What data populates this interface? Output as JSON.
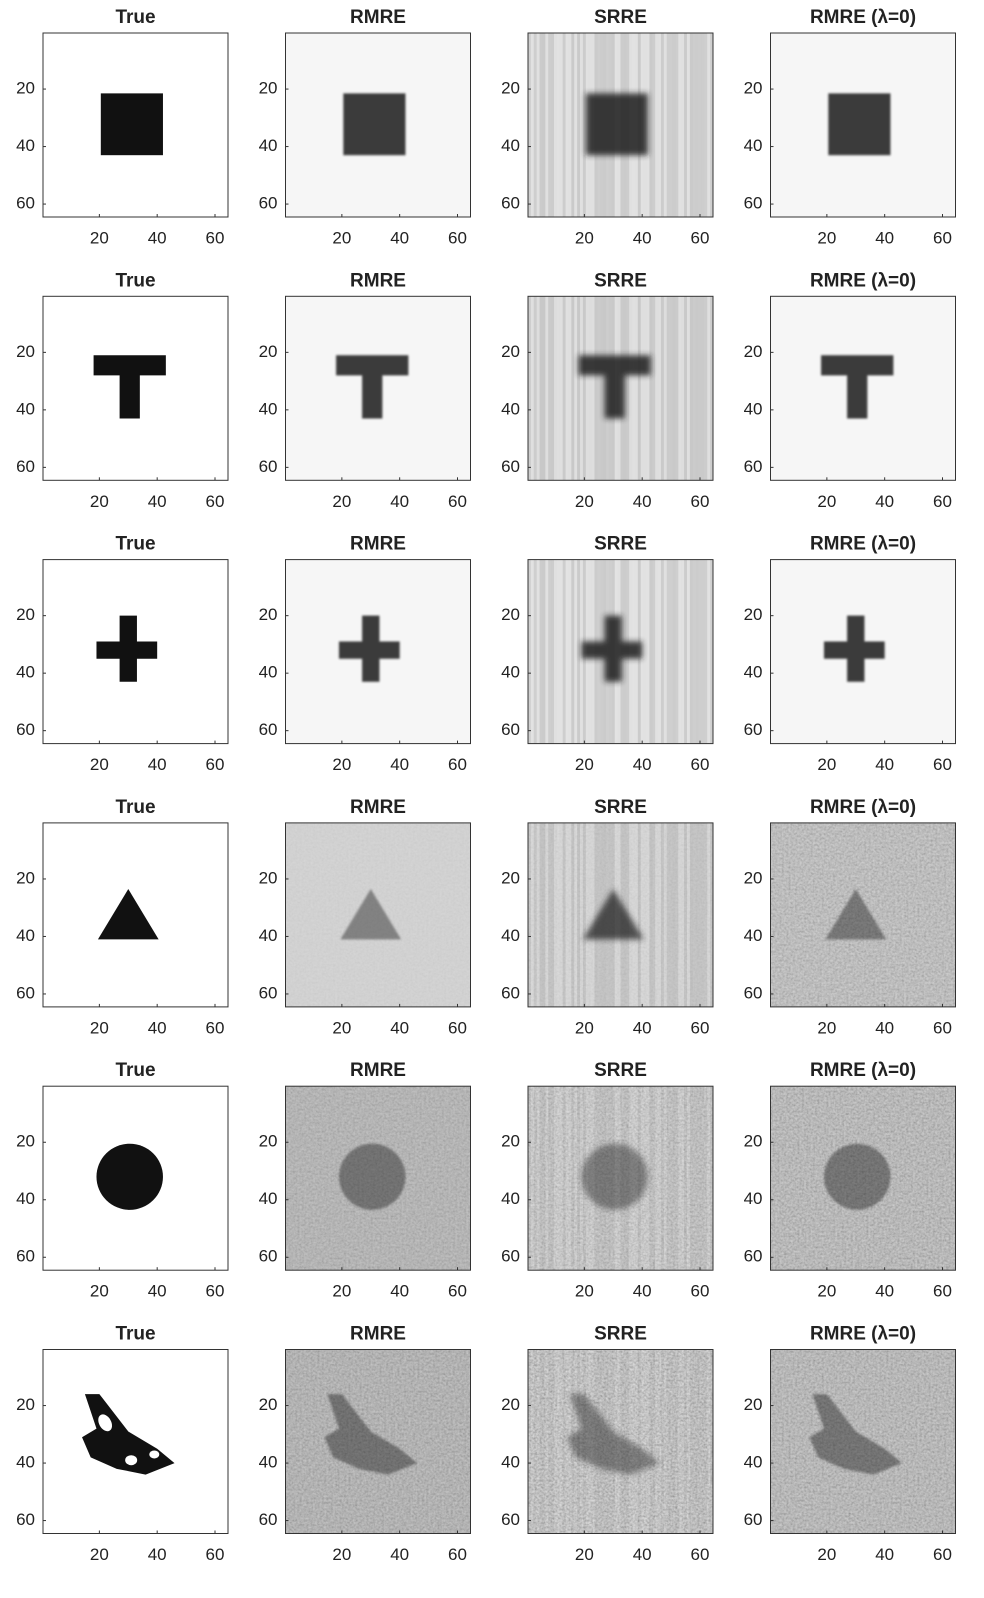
{
  "chart_data": [
    {
      "type": "image",
      "title": "True",
      "xlim": [
        0.5,
        64.5
      ],
      "ylim": [
        64.5,
        0.5
      ],
      "xticks": [
        20,
        40,
        60
      ],
      "yticks": [
        20,
        40,
        60
      ]
    },
    {
      "type": "image",
      "title": "RMRE",
      "xlim": [
        0.5,
        64.5
      ],
      "ylim": [
        64.5,
        0.5
      ],
      "xticks": [
        20,
        40,
        60
      ],
      "yticks": [
        20,
        40,
        60
      ]
    },
    {
      "type": "image",
      "title": "SRRE",
      "xlim": [
        0.5,
        64.5
      ],
      "ylim": [
        64.5,
        0.5
      ],
      "xticks": [
        20,
        40,
        60
      ],
      "yticks": [
        20,
        40,
        60
      ]
    },
    {
      "type": "image",
      "title": "RMRE (λ=0)",
      "xlim": [
        0.5,
        64.5
      ],
      "ylim": [
        64.5,
        0.5
      ],
      "xticks": [
        20,
        40,
        60
      ],
      "yticks": [
        20,
        40,
        60
      ]
    },
    {
      "type": "image",
      "title": "True",
      "xlim": [
        0.5,
        64.5
      ],
      "ylim": [
        64.5,
        0.5
      ],
      "xticks": [
        20,
        40,
        60
      ],
      "yticks": [
        20,
        40,
        60
      ]
    },
    {
      "type": "image",
      "title": "RMRE",
      "xlim": [
        0.5,
        64.5
      ],
      "ylim": [
        64.5,
        0.5
      ],
      "xticks": [
        20,
        40,
        60
      ],
      "yticks": [
        20,
        40,
        60
      ]
    },
    {
      "type": "image",
      "title": "SRRE",
      "xlim": [
        0.5,
        64.5
      ],
      "ylim": [
        64.5,
        0.5
      ],
      "xticks": [
        20,
        40,
        60
      ],
      "yticks": [
        20,
        40,
        60
      ]
    },
    {
      "type": "image",
      "title": "RMRE (λ=0)",
      "xlim": [
        0.5,
        64.5
      ],
      "ylim": [
        64.5,
        0.5
      ],
      "xticks": [
        20,
        40,
        60
      ],
      "yticks": [
        20,
        40,
        60
      ]
    },
    {
      "type": "image",
      "title": "True",
      "xlim": [
        0.5,
        64.5
      ],
      "ylim": [
        64.5,
        0.5
      ],
      "xticks": [
        20,
        40,
        60
      ],
      "yticks": [
        20,
        40,
        60
      ]
    },
    {
      "type": "image",
      "title": "RMRE",
      "xlim": [
        0.5,
        64.5
      ],
      "ylim": [
        64.5,
        0.5
      ],
      "xticks": [
        20,
        40,
        60
      ],
      "yticks": [
        20,
        40,
        60
      ]
    },
    {
      "type": "image",
      "title": "SRRE",
      "xlim": [
        0.5,
        64.5
      ],
      "ylim": [
        64.5,
        0.5
      ],
      "xticks": [
        20,
        40,
        60
      ],
      "yticks": [
        20,
        40,
        60
      ]
    },
    {
      "type": "image",
      "title": "RMRE (λ=0)",
      "xlim": [
        0.5,
        64.5
      ],
      "ylim": [
        64.5,
        0.5
      ],
      "xticks": [
        20,
        40,
        60
      ],
      "yticks": [
        20,
        40,
        60
      ]
    },
    {
      "type": "image",
      "title": "True",
      "xlim": [
        0.5,
        64.5
      ],
      "ylim": [
        64.5,
        0.5
      ],
      "xticks": [
        20,
        40,
        60
      ],
      "yticks": [
        20,
        40,
        60
      ]
    },
    {
      "type": "image",
      "title": "RMRE",
      "xlim": [
        0.5,
        64.5
      ],
      "ylim": [
        64.5,
        0.5
      ],
      "xticks": [
        20,
        40,
        60
      ],
      "yticks": [
        20,
        40,
        60
      ]
    },
    {
      "type": "image",
      "title": "SRRE",
      "xlim": [
        0.5,
        64.5
      ],
      "ylim": [
        64.5,
        0.5
      ],
      "xticks": [
        20,
        40,
        60
      ],
      "yticks": [
        20,
        40,
        60
      ]
    },
    {
      "type": "image",
      "title": "RMRE (λ=0)",
      "xlim": [
        0.5,
        64.5
      ],
      "ylim": [
        64.5,
        0.5
      ],
      "xticks": [
        20,
        40,
        60
      ],
      "yticks": [
        20,
        40,
        60
      ]
    },
    {
      "type": "image",
      "title": "True",
      "xlim": [
        0.5,
        64.5
      ],
      "ylim": [
        64.5,
        0.5
      ],
      "xticks": [
        20,
        40,
        60
      ],
      "yticks": [
        20,
        40,
        60
      ]
    },
    {
      "type": "image",
      "title": "RMRE",
      "xlim": [
        0.5,
        64.5
      ],
      "ylim": [
        64.5,
        0.5
      ],
      "xticks": [
        20,
        40,
        60
      ],
      "yticks": [
        20,
        40,
        60
      ]
    },
    {
      "type": "image",
      "title": "SRRE",
      "xlim": [
        0.5,
        64.5
      ],
      "ylim": [
        64.5,
        0.5
      ],
      "xticks": [
        20,
        40,
        60
      ],
      "yticks": [
        20,
        40,
        60
      ]
    },
    {
      "type": "image",
      "title": "RMRE (λ=0)",
      "xlim": [
        0.5,
        64.5
      ],
      "ylim": [
        64.5,
        0.5
      ],
      "xticks": [
        20,
        40,
        60
      ],
      "yticks": [
        20,
        40,
        60
      ]
    },
    {
      "type": "image",
      "title": "True",
      "xlim": [
        0.5,
        64.5
      ],
      "ylim": [
        64.5,
        0.5
      ],
      "xticks": [
        20,
        40,
        60
      ],
      "yticks": [
        20,
        40,
        60
      ]
    },
    {
      "type": "image",
      "title": "RMRE",
      "xlim": [
        0.5,
        64.5
      ],
      "ylim": [
        64.5,
        0.5
      ],
      "xticks": [
        20,
        40,
        60
      ],
      "yticks": [
        20,
        40,
        60
      ]
    },
    {
      "type": "image",
      "title": "SRRE",
      "xlim": [
        0.5,
        64.5
      ],
      "ylim": [
        64.5,
        0.5
      ],
      "xticks": [
        20,
        40,
        60
      ],
      "yticks": [
        20,
        40,
        60
      ]
    },
    {
      "type": "image",
      "title": "RMRE (λ=0)",
      "xlim": [
        0.5,
        64.5
      ],
      "ylim": [
        64.5,
        0.5
      ],
      "xticks": [
        20,
        40,
        60
      ],
      "yticks": [
        20,
        40,
        60
      ]
    }
  ]
}
